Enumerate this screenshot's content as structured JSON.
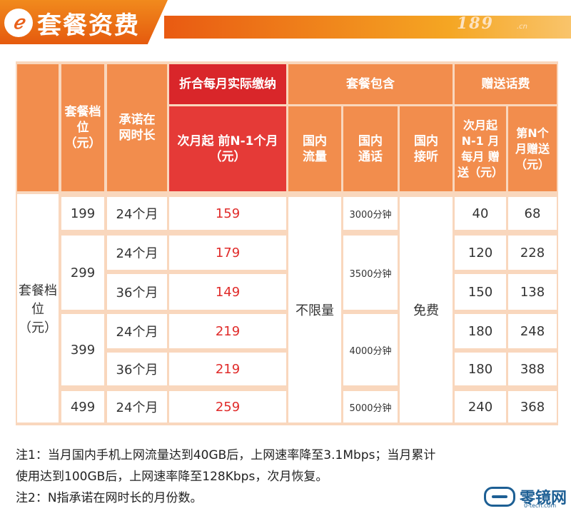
{
  "header": {
    "logo": "ℯ",
    "title": "套餐资费",
    "brand_number": "189",
    "brand_suffix": ".cn"
  },
  "table": {
    "headers": {
      "tier": "套餐档位（元）",
      "commitment": "承诺在网时长",
      "actual_pay_group": "折合每月实际缴纳",
      "actual_pay_sub": "次月起 前N-1个月（元）",
      "includes_group": "套餐包含",
      "data": "国内流量",
      "calls": "国内通话",
      "receive": "国内接听",
      "bonus_group": "赠送话费",
      "bonus_first": "次月起 N-1 月每月 赠送（元）",
      "bonus_n": "第N个 月赠送（元）"
    },
    "side_label": "套餐档位（元）",
    "tiers": [
      "199",
      "299",
      "399",
      "499"
    ],
    "rows": [
      {
        "commitment": "24个月",
        "pay": "159",
        "bonus_first": "40",
        "bonus_n": "68"
      },
      {
        "commitment": "24个月",
        "pay": "179",
        "bonus_first": "120",
        "bonus_n": "228"
      },
      {
        "commitment": "36个月",
        "pay": "149",
        "bonus_first": "150",
        "bonus_n": "138"
      },
      {
        "commitment": "24个月",
        "pay": "219",
        "bonus_first": "180",
        "bonus_n": "248"
      },
      {
        "commitment": "36个月",
        "pay": "219",
        "bonus_first": "180",
        "bonus_n": "388"
      },
      {
        "commitment": "24个月",
        "pay": "259",
        "bonus_first": "240",
        "bonus_n": "368"
      }
    ],
    "data_value": "不限量",
    "calls": [
      "3000分钟",
      "3500分钟",
      "4000分钟",
      "5000分钟"
    ],
    "receive_value": "免费"
  },
  "notes": {
    "note1_line1": "注1：当月国内手机上网流量达到40GB后，上网速率降至3.1Mbps；当月累计",
    "note1_line2": "使用达到100GB后，上网速率降至128Kbps，次月恢复。",
    "note2": "注2：N指承诺在网时长的月份数。"
  },
  "watermark": {
    "name": "零镜网",
    "url": "0-tech.com"
  },
  "colors": {
    "header_orange": "#e95a12",
    "table_header": "#f28d4d",
    "highlight_red": "#e53a37",
    "price_red": "#e02b2a",
    "table_bg": "#f9d7bd"
  }
}
